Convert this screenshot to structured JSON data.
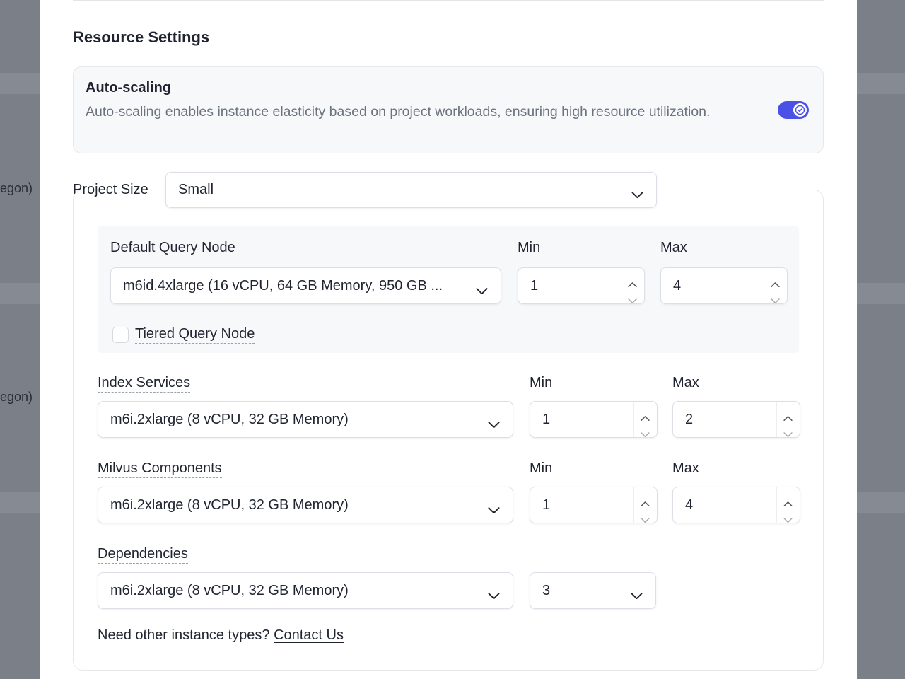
{
  "background": {
    "row_labels": [
      "egon)",
      "egon)"
    ]
  },
  "header": {
    "title": "Resource Settings"
  },
  "auto_scaling": {
    "title": "Auto-scaling",
    "description": "Auto-scaling enables instance elasticity based on project workloads, ensuring high resource utilization.",
    "enabled": true
  },
  "project_size": {
    "label": "Project Size",
    "value": "Small"
  },
  "groups": [
    {
      "label": "Default Query Node",
      "instance": "m6id.4xlarge (16 vCPU, 64 GB Memory, 950 GB ...",
      "min_label": "Min",
      "max_label": "Max",
      "min": 1,
      "max": 4,
      "tiered_label": "Tiered Query Node"
    },
    {
      "label": "Index Services",
      "instance": "m6i.2xlarge (8 vCPU, 32 GB Memory)",
      "min_label": "Min",
      "max_label": "Max",
      "min": 1,
      "max": 2
    },
    {
      "label": "Milvus Components",
      "instance": "m6i.2xlarge (8 vCPU, 32 GB Memory)",
      "min_label": "Min",
      "max_label": "Max",
      "min": 1,
      "max": 4
    },
    {
      "label": "Dependencies",
      "instance": "m6i.2xlarge (8 vCPU, 32 GB Memory)",
      "replicas": 3
    }
  ],
  "footer": {
    "text": "Need other instance types?",
    "link": "Contact Us"
  }
}
